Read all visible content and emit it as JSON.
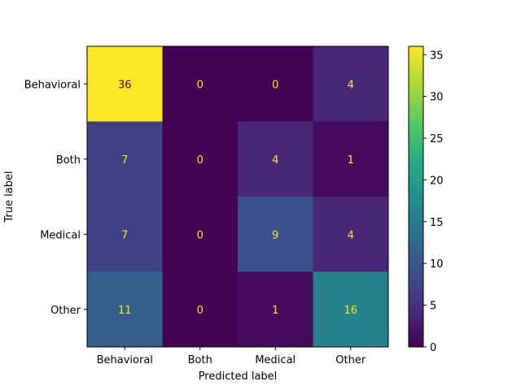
{
  "chart_data": {
    "type": "heatmap",
    "title": "",
    "xlabel": "Predicted label",
    "ylabel": "True label",
    "x_categories": [
      "Behavioral",
      "Both",
      "Medical",
      "Other"
    ],
    "y_categories": [
      "Behavioral",
      "Both",
      "Medical",
      "Other"
    ],
    "matrix": [
      [
        36,
        0,
        0,
        4
      ],
      [
        7,
        0,
        4,
        1
      ],
      [
        7,
        0,
        9,
        4
      ],
      [
        11,
        0,
        1,
        16
      ]
    ],
    "colormap": "viridis",
    "colorbar": {
      "range": [
        0,
        36
      ],
      "ticks": [
        0,
        5,
        10,
        15,
        20,
        25,
        30,
        35
      ]
    },
    "text_colors": {
      "on_dark": "#fde725",
      "on_light": "#440154"
    }
  }
}
